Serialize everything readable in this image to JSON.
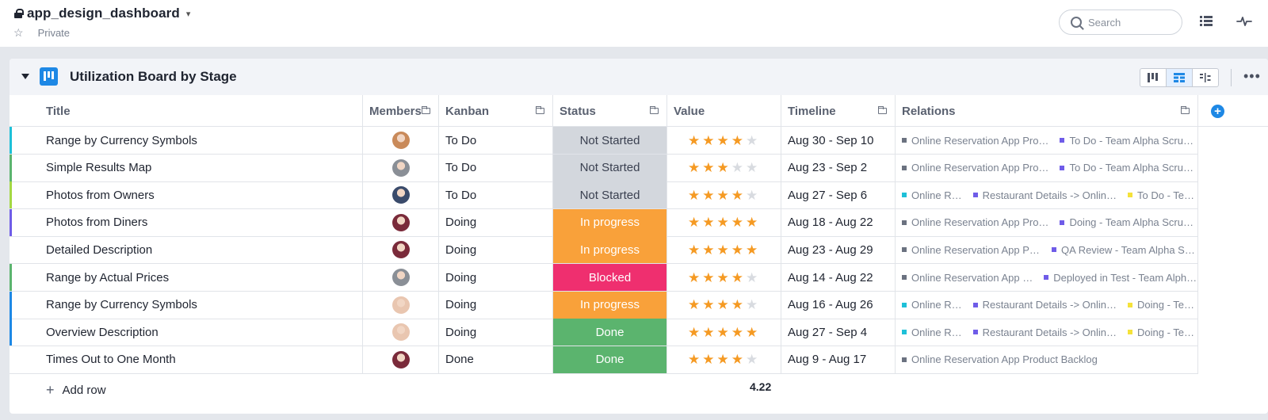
{
  "header": {
    "app_title": "app_design_dashboard",
    "visibility": "Private",
    "search_placeholder": "Search",
    "icons": [
      "lock-icon",
      "chevron-down-icon",
      "star-outline-icon",
      "search-icon",
      "list-view-icon",
      "activity-icon"
    ]
  },
  "board": {
    "title": "Utilization Board by Stage",
    "accent": "#1e88e5",
    "view_modes": [
      "board-view",
      "table-view",
      "split-view"
    ],
    "active_view": "table-view"
  },
  "columns": [
    "Title",
    "Members",
    "Kanban",
    "Status",
    "Value",
    "Timeline",
    "Relations"
  ],
  "status_colors": {
    "Not Started": "#d3d7dd",
    "In progress": "#f9a13a",
    "Blocked": "#ef2f6f",
    "Done": "#5bb46e"
  },
  "rows": [
    {
      "title": "Range by Currency Symbols",
      "bar": "#1ec0d8",
      "kanban": "To Do",
      "status": "Not Started",
      "stars": 4,
      "timeline": "Aug 30 - Sep 10",
      "relations": [
        {
          "text": "Online Reservation App Pro…",
          "color": "#6b7280"
        },
        {
          "text": "To Do - Team Alpha Scru…",
          "color": "#6f5ce8"
        }
      ]
    },
    {
      "title": "Simple Results Map",
      "bar": "#5bb46e",
      "kanban": "To Do",
      "status": "Not Started",
      "stars": 3,
      "timeline": "Aug 23 - Sep 2",
      "relations": [
        {
          "text": "Online Reservation App Pro…",
          "color": "#6b7280"
        },
        {
          "text": "To Do - Team Alpha Scru…",
          "color": "#6f5ce8"
        }
      ]
    },
    {
      "title": "Photos from Owners",
      "bar": "#a4d843",
      "kanban": "To Do",
      "status": "Not Started",
      "stars": 4,
      "timeline": "Aug 27 - Sep 6",
      "relations": [
        {
          "text": "Online R…",
          "color": "#1ec0d8"
        },
        {
          "text": "Restaurant Details -> Onlin…",
          "color": "#6f5ce8"
        },
        {
          "text": "To Do - Te…",
          "color": "#f5e23a"
        }
      ]
    },
    {
      "title": "Photos from Diners",
      "bar": "#6f5ce8",
      "kanban": "Doing",
      "status": "In progress",
      "stars": 5,
      "timeline": "Aug 18 - Aug 22",
      "relations": [
        {
          "text": "Online Reservation App Pro…",
          "color": "#6b7280"
        },
        {
          "text": "Doing - Team Alpha Scru…",
          "color": "#6f5ce8"
        }
      ]
    },
    {
      "title": "Detailed Description",
      "bar": "",
      "kanban": "Doing",
      "status": "In progress",
      "stars": 5,
      "timeline": "Aug 23 - Aug 29",
      "relations": [
        {
          "text": "Online Reservation App Pr…",
          "color": "#6b7280"
        },
        {
          "text": "QA Review - Team Alpha Sc…",
          "color": "#6f5ce8"
        }
      ]
    },
    {
      "title": "Range by Actual Prices",
      "bar": "#5bb46e",
      "kanban": "Doing",
      "status": "Blocked",
      "stars": 4,
      "timeline": "Aug 14 - Aug 22",
      "relations": [
        {
          "text": "Online Reservation App …",
          "color": "#6b7280"
        },
        {
          "text": "Deployed in Test - Team Alph…",
          "color": "#6f5ce8"
        }
      ]
    },
    {
      "title": "Range by Currency Symbols",
      "bar": "#1e88e5",
      "kanban": "Doing",
      "status": "In progress",
      "stars": 4,
      "timeline": "Aug 16 - Aug 26",
      "relations": [
        {
          "text": "Online R…",
          "color": "#1ec0d8"
        },
        {
          "text": "Restaurant Details -> Onlin…",
          "color": "#6f5ce8"
        },
        {
          "text": "Doing - Te…",
          "color": "#f5e23a"
        }
      ]
    },
    {
      "title": "Overview Description",
      "bar": "#1e88e5",
      "kanban": "Doing",
      "status": "Done",
      "stars": 5,
      "timeline": "Aug 27 - Sep 4",
      "relations": [
        {
          "text": "Online R…",
          "color": "#1ec0d8"
        },
        {
          "text": "Restaurant Details -> Onlin…",
          "color": "#6f5ce8"
        },
        {
          "text": "Doing - Te…",
          "color": "#f5e23a"
        }
      ]
    },
    {
      "title": "Times Out to One Month",
      "bar": "",
      "kanban": "Done",
      "status": "Done",
      "stars": 4,
      "timeline": "Aug 9 - Aug 17",
      "relations": [
        {
          "text": "Online Reservation App Product Backlog",
          "color": "#6b7280"
        }
      ]
    }
  ],
  "avatars": [
    "#c98a5a",
    "#8a8f96",
    "#3a4b6b",
    "#7a2a3a",
    "#7a2a3a",
    "#8a8f96",
    "#e9c6b0",
    "#e9c6b0",
    "#7a2a3a"
  ],
  "footer": {
    "add_row_label": "Add row",
    "value_average": "4.22"
  }
}
